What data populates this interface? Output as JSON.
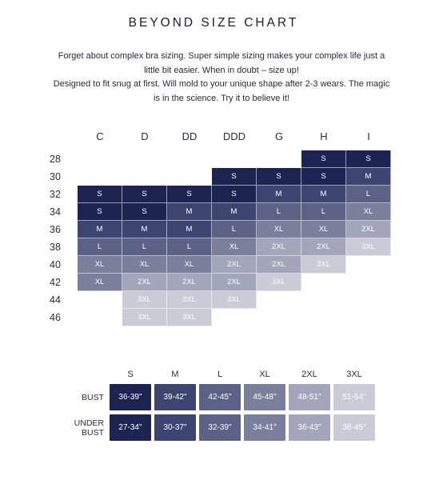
{
  "title": "BEYOND SIZE CHART",
  "intro": {
    "line1": "Forget about complex bra sizing. Super simple sizing makes your complex life just a little bit easier. When in doubt – size up!",
    "line2": "Designed to fit snug at first. Will mold to your unique shape after 2-3 wears. The magic is in the science. Try it to believe it!"
  },
  "colors": {
    "S": "#1e2452",
    "M": "#3c4470",
    "L": "#5b6285",
    "XL": "#7a7f9b",
    "2XL": "#a3a6ba",
    "3XL": "#cacbd7"
  },
  "size_grid": {
    "cups": [
      "C",
      "D",
      "DD",
      "DDD",
      "G",
      "H",
      "I"
    ],
    "bands": [
      "28",
      "30",
      "32",
      "34",
      "36",
      "38",
      "40",
      "42",
      "44",
      "46"
    ],
    "rows": [
      [
        "",
        "",
        "",
        "",
        "",
        "S",
        "S"
      ],
      [
        "",
        "",
        "",
        "S",
        "S",
        "S",
        "M"
      ],
      [
        "S",
        "S",
        "S",
        "S",
        "M",
        "M",
        "L"
      ],
      [
        "S",
        "S",
        "M",
        "M",
        "L",
        "L",
        "XL"
      ],
      [
        "M",
        "M",
        "M",
        "L",
        "XL",
        "XL",
        "2XL"
      ],
      [
        "L",
        "L",
        "L",
        "XL",
        "2XL",
        "2XL",
        "3XL"
      ],
      [
        "XL",
        "XL",
        "XL",
        "2XL",
        "2XL",
        "3XL",
        ""
      ],
      [
        "XL",
        "2XL",
        "2XL",
        "2XL",
        "3XL",
        "",
        ""
      ],
      [
        "",
        "3XL",
        "3XL",
        "3XL",
        "",
        "",
        ""
      ],
      [
        "",
        "3XL",
        "3XL",
        "",
        "",
        "",
        ""
      ]
    ]
  },
  "measurements": {
    "sizes": [
      "S",
      "M",
      "L",
      "XL",
      "2XL",
      "3XL"
    ],
    "rows": [
      {
        "label": [
          "BUST"
        ],
        "values": [
          "36-39\"",
          "39-42\"",
          "42-45\"",
          "45-48\"",
          "48-51\"",
          "51-54\""
        ]
      },
      {
        "label": [
          "UNDER",
          "BUST"
        ],
        "values": [
          "27-34\"",
          "30-37\"",
          "32-39\"",
          "34-41\"",
          "36-43\"",
          "38-45\""
        ]
      }
    ]
  }
}
